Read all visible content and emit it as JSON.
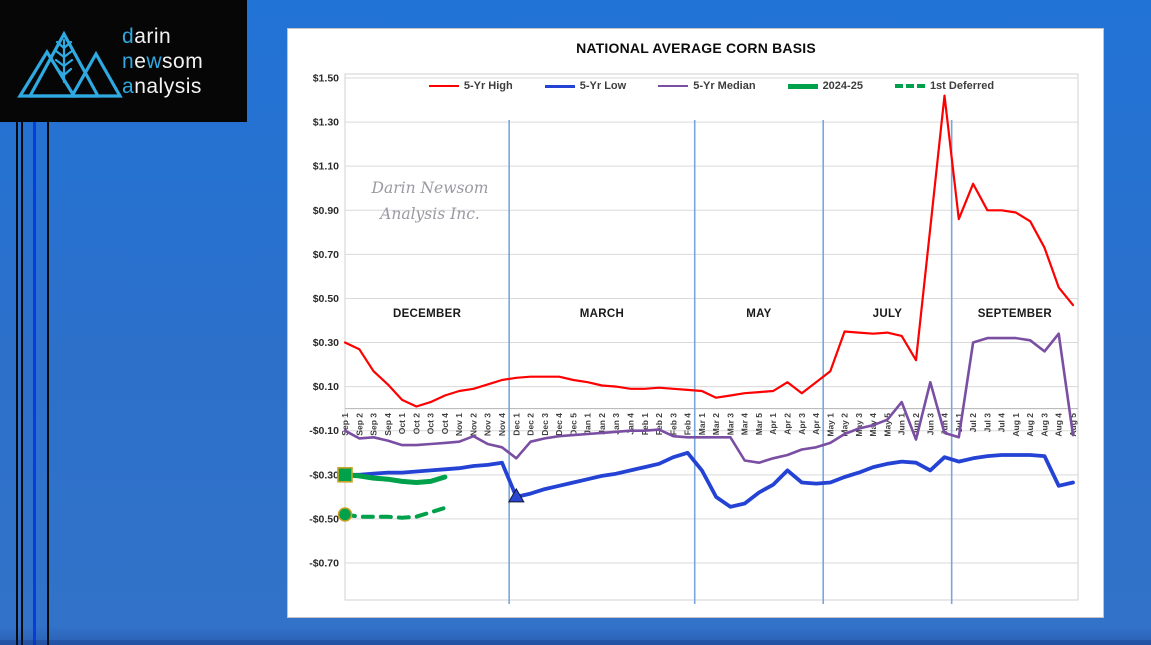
{
  "logo": {
    "accent_color": "#2fa9e1",
    "text_color": "#f2f2f2",
    "lines": [
      {
        "segments": [
          {
            "t": "d",
            "accent": true
          },
          {
            "t": "arin",
            "accent": false
          }
        ]
      },
      {
        "segments": [
          {
            "t": "n",
            "accent": true
          },
          {
            "t": "e",
            "accent": false
          },
          {
            "t": "w",
            "accent": true
          },
          {
            "t": "som",
            "accent": false
          }
        ]
      },
      {
        "segments": [
          {
            "t": "a",
            "accent": true
          },
          {
            "t": "nalysis",
            "accent": false
          }
        ]
      }
    ]
  },
  "chart_data": {
    "type": "line",
    "title": "NATIONAL AVERAGE CORN BASIS",
    "watermark_lines": [
      "Darin Newsom",
      "Analysis Inc."
    ],
    "legend_position": "top",
    "grid": true,
    "ylim": [
      -0.87,
      1.52
    ],
    "y_ticks": {
      "values": [
        1.5,
        1.3,
        1.1,
        0.9,
        0.7,
        0.5,
        0.3,
        0.1,
        -0.1,
        -0.3,
        -0.5,
        -0.7
      ],
      "labels": [
        "$1.50",
        "$1.30",
        "$1.10",
        "$0.90",
        "$0.70",
        "$0.50",
        "$0.30",
        "$0.10",
        "-$0.10",
        "-$0.30",
        "-$0.50",
        "-$0.70"
      ]
    },
    "categories": [
      "Sep 1",
      "Sep 2",
      "Sep 3",
      "Sep 4",
      "Oct 1",
      "Oct 2",
      "Oct 3",
      "Oct 4",
      "Nov 1",
      "Nov 2",
      "Nov 3",
      "Nov 4",
      "Dec 1",
      "Dec 2",
      "Dec 3",
      "Dec 4",
      "Dec 5",
      "Jan 1",
      "Jan 2",
      "Jan 3",
      "Jan 4",
      "Feb 1",
      "Feb 2",
      "Feb 3",
      "Feb 4",
      "Mar 1",
      "Mar 2",
      "Mar 3",
      "Mar 4",
      "Mar 5",
      "Apr 1",
      "Apr 2",
      "Apr 3",
      "Apr 4",
      "May 1",
      "May 2",
      "May 3",
      "May 4",
      "May 5",
      "Jun 1",
      "Jun 2",
      "Jun 3",
      "Jun 4",
      "Jul 1",
      "Jul 2",
      "Jul 3",
      "Jul 4",
      "Aug 1",
      "Aug 2",
      "Aug 3",
      "Aug 4",
      "Aug 5"
    ],
    "separator_before_categories": [
      "Dec 1",
      "Mar 1",
      "May 1",
      "Jul 1"
    ],
    "month_labels": [
      "DECEMBER",
      "MARCH",
      "MAY",
      "JULY",
      "SEPTEMBER"
    ],
    "series": [
      {
        "name": "5-Yr High",
        "color": "#fe0000",
        "width": 2.2,
        "dash": null,
        "values": [
          0.3,
          0.27,
          0.17,
          0.11,
          0.04,
          0.01,
          0.03,
          0.06,
          0.08,
          0.09,
          0.11,
          0.13,
          0.14,
          0.145,
          0.145,
          0.145,
          0.13,
          0.12,
          0.105,
          0.1,
          0.09,
          0.09,
          0.095,
          0.09,
          0.085,
          0.08,
          0.05,
          0.06,
          0.07,
          0.075,
          0.08,
          0.12,
          0.07,
          0.12,
          0.17,
          0.35,
          0.345,
          0.34,
          0.345,
          0.33,
          0.22,
          0.82,
          1.42,
          0.86,
          1.02,
          0.9,
          0.9,
          0.89,
          0.85,
          0.73,
          0.55,
          0.47
        ]
      },
      {
        "name": "5-Yr Low",
        "color": "#2443d4",
        "width": 3.8,
        "dash": null,
        "values": [
          -0.3,
          -0.3,
          -0.295,
          -0.29,
          -0.29,
          -0.285,
          -0.28,
          -0.275,
          -0.27,
          -0.26,
          -0.255,
          -0.245,
          -0.4,
          -0.385,
          -0.365,
          -0.35,
          -0.335,
          -0.32,
          -0.305,
          -0.295,
          -0.28,
          -0.265,
          -0.25,
          -0.22,
          -0.2,
          -0.28,
          -0.4,
          -0.445,
          -0.43,
          -0.38,
          -0.345,
          -0.28,
          -0.335,
          -0.34,
          -0.335,
          -0.31,
          -0.29,
          -0.265,
          -0.25,
          -0.24,
          -0.245,
          -0.28,
          -0.22,
          -0.24,
          -0.225,
          -0.215,
          -0.21,
          -0.21,
          -0.21,
          -0.215,
          -0.35,
          -0.335
        ]
      },
      {
        "name": "5-Yr Median",
        "color": "#7a4fa3",
        "width": 2.6,
        "dash": null,
        "values": [
          -0.1,
          -0.135,
          -0.13,
          -0.145,
          -0.165,
          -0.165,
          -0.16,
          -0.155,
          -0.15,
          -0.125,
          -0.16,
          -0.175,
          -0.225,
          -0.15,
          -0.135,
          -0.125,
          -0.12,
          -0.115,
          -0.11,
          -0.105,
          -0.1,
          -0.1,
          -0.095,
          -0.125,
          -0.13,
          -0.13,
          -0.13,
          -0.13,
          -0.235,
          -0.245,
          -0.225,
          -0.21,
          -0.185,
          -0.175,
          -0.155,
          -0.115,
          -0.09,
          -0.075,
          -0.05,
          0.03,
          -0.14,
          0.12,
          -0.11,
          -0.13,
          0.3,
          0.32,
          0.32,
          0.32,
          0.31,
          0.26,
          0.34,
          -0.12
        ]
      },
      {
        "name": "2024-25",
        "color": "#00a14b",
        "width": 5,
        "dash": null,
        "values": [
          -0.3,
          -0.305,
          -0.315,
          -0.32,
          -0.33,
          -0.335,
          -0.33,
          -0.31
        ]
      },
      {
        "name": "1st Deferred",
        "color": "#00a14b",
        "width": 4,
        "dash": "10 8",
        "values": [
          -0.48,
          -0.49,
          -0.49,
          -0.49,
          -0.495,
          -0.49,
          -0.47,
          -0.45
        ]
      }
    ],
    "markers": [
      {
        "series": "2024-25",
        "category": "Sep 1",
        "shape": "square",
        "fill": "#00a14b",
        "stroke": "#c9a227"
      },
      {
        "series": "1st Deferred",
        "category": "Sep 1",
        "shape": "circle",
        "fill": "#00a14b",
        "stroke": "#c9a227"
      },
      {
        "series": "5-Yr Low",
        "category": "Dec 1",
        "shape": "triangle-up",
        "fill": "#2a47d4",
        "stroke": "#15152a"
      }
    ]
  }
}
